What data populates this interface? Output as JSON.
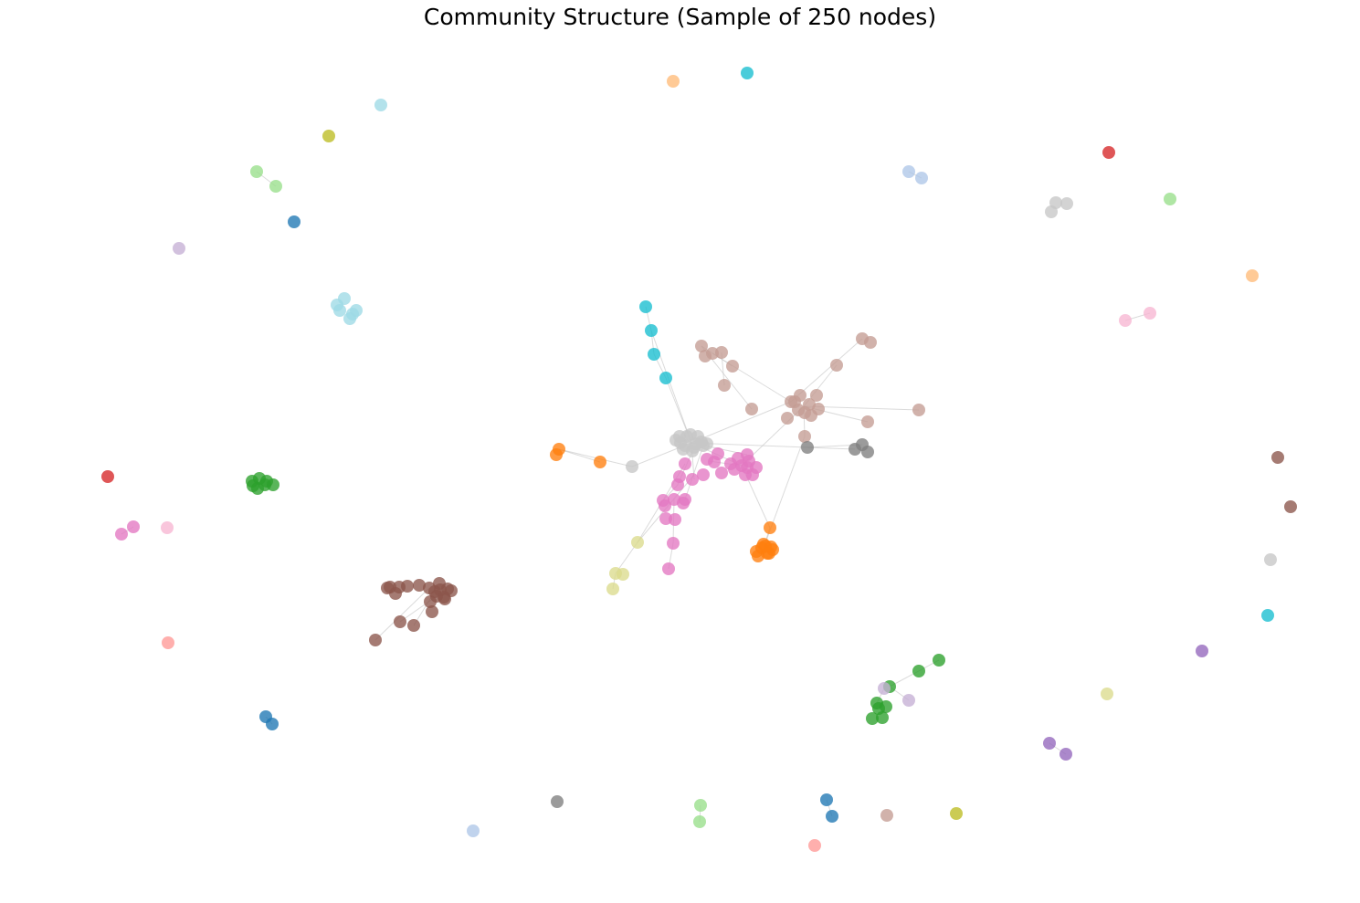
{
  "chart_data": {
    "type": "network",
    "title": "Community Structure (Sample of 250 nodes)",
    "node_count": 250,
    "communities": [
      {
        "id": "c1",
        "color": "#c7c7c7"
      },
      {
        "id": "c2",
        "color": "#e377c2"
      },
      {
        "id": "c3",
        "color": "#c49c94"
      },
      {
        "id": "c4",
        "color": "#ff7f0e"
      },
      {
        "id": "c5",
        "color": "#8c564b"
      },
      {
        "id": "c6",
        "color": "#2ca02c"
      },
      {
        "id": "c7",
        "color": "#17becf"
      },
      {
        "id": "c8",
        "color": "#9edae5"
      },
      {
        "id": "c9",
        "color": "#dbdb8d"
      },
      {
        "id": "c10",
        "color": "#7f7f7f"
      },
      {
        "id": "c11",
        "color": "#1f77b4"
      },
      {
        "id": "c12",
        "color": "#98df8a"
      },
      {
        "id": "c13",
        "color": "#aec7e8"
      },
      {
        "id": "c14",
        "color": "#9467bd"
      },
      {
        "id": "c15",
        "color": "#d62728"
      },
      {
        "id": "c16",
        "color": "#ffbb78"
      },
      {
        "id": "c17",
        "color": "#bcbd22"
      },
      {
        "id": "c18",
        "color": "#f7b6d2"
      },
      {
        "id": "c19",
        "color": "#c5b0d5"
      },
      {
        "id": "c20",
        "color": "#ff9896"
      }
    ],
    "axes_visible": false,
    "grid": false,
    "legend": "none"
  }
}
